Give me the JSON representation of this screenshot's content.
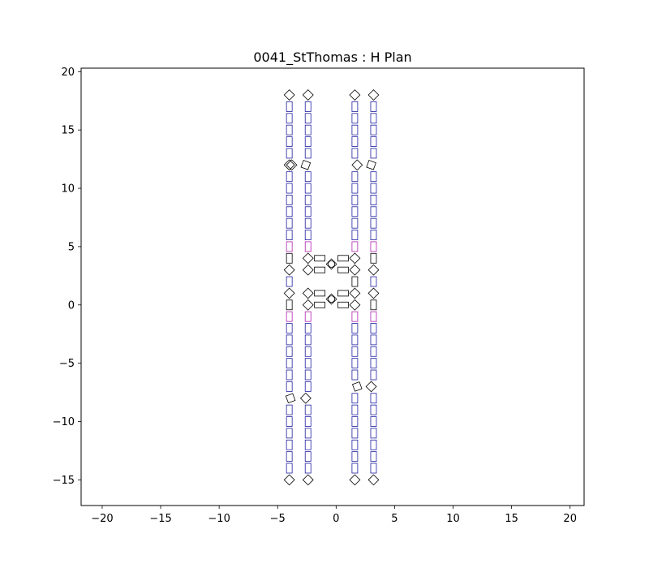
{
  "chart_data": {
    "type": "scatter",
    "title": "0041_StThomas : H Plan",
    "xlabel": "",
    "ylabel": "",
    "xlim": [
      -21.8,
      21.2
    ],
    "ylim": [
      -17.2,
      20.3
    ],
    "xticks": [
      -20,
      -15,
      -10,
      -5,
      0,
      5,
      10,
      15,
      20
    ],
    "yticks": [
      -15,
      -10,
      -5,
      0,
      5,
      10,
      15,
      20
    ],
    "xtick_labels": [
      "−20",
      "−15",
      "−10",
      "−5",
      "0",
      "5",
      "10",
      "15",
      "20"
    ],
    "ytick_labels": [
      "−15",
      "−10",
      "−5",
      "0",
      "5",
      "10",
      "15",
      "20"
    ],
    "grid": false,
    "legend": "none",
    "colors": {
      "blue": "#1f1fa0",
      "magenta": "#b020b0",
      "black": "#000000"
    },
    "columns": [
      {
        "x": -4.0,
        "squares": [
          {
            "y": 18.0,
            "rot": 45
          },
          {
            "y": 12.0,
            "rot": 45
          },
          {
            "y": 3.0,
            "rot": 45
          },
          {
            "y": 1.0,
            "rot": 45
          },
          {
            "y": -15.0,
            "rot": 45
          }
        ],
        "rects": [
          {
            "y": 17.0,
            "c": "blue"
          },
          {
            "y": 16.0,
            "c": "blue"
          },
          {
            "y": 15.0,
            "c": "blue"
          },
          {
            "y": 14.0,
            "c": "blue"
          },
          {
            "y": 13.0,
            "c": "blue"
          },
          {
            "y": 11.0,
            "c": "blue"
          },
          {
            "y": 10.0,
            "c": "blue"
          },
          {
            "y": 9.0,
            "c": "blue"
          },
          {
            "y": 8.0,
            "c": "blue"
          },
          {
            "y": 7.0,
            "c": "blue"
          },
          {
            "y": 6.0,
            "c": "blue"
          },
          {
            "y": 5.0,
            "c": "magenta"
          },
          {
            "y": 4.0,
            "c": "black"
          },
          {
            "y": 2.0,
            "c": "blue"
          },
          {
            "y": 0.0,
            "c": "black"
          },
          {
            "y": -1.0,
            "c": "magenta"
          },
          {
            "y": -2.0,
            "c": "blue"
          },
          {
            "y": -3.0,
            "c": "blue"
          },
          {
            "y": -4.0,
            "c": "blue"
          },
          {
            "y": -5.0,
            "c": "blue"
          },
          {
            "y": -6.0,
            "c": "blue"
          },
          {
            "y": -7.0,
            "c": "blue"
          },
          {
            "y": -9.0,
            "c": "blue"
          },
          {
            "y": -10.0,
            "c": "blue"
          },
          {
            "y": -11.0,
            "c": "blue"
          },
          {
            "y": -12.0,
            "c": "blue"
          },
          {
            "y": -13.0,
            "c": "blue"
          },
          {
            "y": -14.0,
            "c": "blue"
          }
        ]
      },
      {
        "x": -2.4,
        "squares": [
          {
            "y": 18.0,
            "rot": 45
          },
          {
            "y": 3.0,
            "rot": 45
          },
          {
            "y": 1.0,
            "rot": 45
          },
          {
            "y": -15.0,
            "rot": 45
          }
        ],
        "rects": [
          {
            "y": 17.0,
            "c": "blue"
          },
          {
            "y": 16.0,
            "c": "blue"
          },
          {
            "y": 15.0,
            "c": "blue"
          },
          {
            "y": 14.0,
            "c": "blue"
          },
          {
            "y": 13.0,
            "c": "blue"
          },
          {
            "y": 11.0,
            "c": "blue"
          },
          {
            "y": 10.0,
            "c": "blue"
          },
          {
            "y": 9.0,
            "c": "blue"
          },
          {
            "y": 8.0,
            "c": "blue"
          },
          {
            "y": 7.0,
            "c": "blue"
          },
          {
            "y": 6.0,
            "c": "blue"
          },
          {
            "y": 5.0,
            "c": "magenta"
          },
          {
            "y": -1.0,
            "c": "magenta"
          },
          {
            "y": -2.0,
            "c": "blue"
          },
          {
            "y": -3.0,
            "c": "blue"
          },
          {
            "y": -4.0,
            "c": "blue"
          },
          {
            "y": -5.0,
            "c": "blue"
          },
          {
            "y": -6.0,
            "c": "blue"
          },
          {
            "y": -7.0,
            "c": "blue"
          },
          {
            "y": -9.0,
            "c": "blue"
          },
          {
            "y": -10.0,
            "c": "blue"
          },
          {
            "y": -11.0,
            "c": "blue"
          },
          {
            "y": -12.0,
            "c": "blue"
          },
          {
            "y": -13.0,
            "c": "blue"
          },
          {
            "y": -14.0,
            "c": "blue"
          }
        ]
      },
      {
        "x": 1.6,
        "squares": [
          {
            "y": 18.0,
            "rot": 45
          },
          {
            "y": 3.0,
            "rot": 45
          },
          {
            "y": 1.0,
            "rot": 45
          },
          {
            "y": -15.0,
            "rot": 45
          }
        ],
        "rects": [
          {
            "y": 17.0,
            "c": "blue"
          },
          {
            "y": 16.0,
            "c": "blue"
          },
          {
            "y": 15.0,
            "c": "blue"
          },
          {
            "y": 14.0,
            "c": "blue"
          },
          {
            "y": 13.0,
            "c": "blue"
          },
          {
            "y": 11.0,
            "c": "blue"
          },
          {
            "y": 10.0,
            "c": "blue"
          },
          {
            "y": 9.0,
            "c": "blue"
          },
          {
            "y": 8.0,
            "c": "blue"
          },
          {
            "y": 7.0,
            "c": "blue"
          },
          {
            "y": 6.0,
            "c": "blue"
          },
          {
            "y": 5.0,
            "c": "magenta"
          },
          {
            "y": 2.0,
            "c": "black"
          },
          {
            "y": -1.0,
            "c": "magenta"
          },
          {
            "y": -2.0,
            "c": "blue"
          },
          {
            "y": -3.0,
            "c": "blue"
          },
          {
            "y": -4.0,
            "c": "blue"
          },
          {
            "y": -5.0,
            "c": "blue"
          },
          {
            "y": -6.0,
            "c": "blue"
          },
          {
            "y": -8.0,
            "c": "blue"
          },
          {
            "y": -9.0,
            "c": "blue"
          },
          {
            "y": -10.0,
            "c": "blue"
          },
          {
            "y": -11.0,
            "c": "blue"
          },
          {
            "y": -12.0,
            "c": "blue"
          },
          {
            "y": -13.0,
            "c": "blue"
          },
          {
            "y": -14.0,
            "c": "blue"
          }
        ]
      },
      {
        "x": 3.2,
        "squares": [
          {
            "y": 18.0,
            "rot": 45
          },
          {
            "y": 3.0,
            "rot": 45
          },
          {
            "y": 1.0,
            "rot": 45
          },
          {
            "y": -15.0,
            "rot": 45
          }
        ],
        "rects": [
          {
            "y": 17.0,
            "c": "blue"
          },
          {
            "y": 16.0,
            "c": "blue"
          },
          {
            "y": 15.0,
            "c": "blue"
          },
          {
            "y": 14.0,
            "c": "blue"
          },
          {
            "y": 13.0,
            "c": "blue"
          },
          {
            "y": 11.0,
            "c": "blue"
          },
          {
            "y": 10.0,
            "c": "blue"
          },
          {
            "y": 9.0,
            "c": "blue"
          },
          {
            "y": 8.0,
            "c": "blue"
          },
          {
            "y": 7.0,
            "c": "blue"
          },
          {
            "y": 6.0,
            "c": "blue"
          },
          {
            "y": 5.0,
            "c": "magenta"
          },
          {
            "y": 4.0,
            "c": "black"
          },
          {
            "y": 2.0,
            "c": "blue"
          },
          {
            "y": 0.0,
            "c": "black"
          },
          {
            "y": -1.0,
            "c": "magenta"
          },
          {
            "y": -2.0,
            "c": "blue"
          },
          {
            "y": -3.0,
            "c": "blue"
          },
          {
            "y": -4.0,
            "c": "blue"
          },
          {
            "y": -5.0,
            "c": "blue"
          },
          {
            "y": -6.0,
            "c": "blue"
          },
          {
            "y": -8.0,
            "c": "blue"
          },
          {
            "y": -9.0,
            "c": "blue"
          },
          {
            "y": -10.0,
            "c": "blue"
          },
          {
            "y": -11.0,
            "c": "blue"
          },
          {
            "y": -12.0,
            "c": "blue"
          },
          {
            "y": -13.0,
            "c": "blue"
          },
          {
            "y": -14.0,
            "c": "blue"
          }
        ]
      }
    ],
    "tilted_squares": [
      {
        "x": -3.8,
        "y": 12.0,
        "rot": 45
      },
      {
        "x": -2.6,
        "y": 12.0,
        "rot": 20
      },
      {
        "x": 1.8,
        "y": 12.0,
        "rot": 45
      },
      {
        "x": 3.0,
        "y": 12.0,
        "rot": 20
      },
      {
        "x": -3.9,
        "y": -8.0,
        "rot": 70
      },
      {
        "x": -2.6,
        "y": -8.0,
        "rot": 45
      },
      {
        "x": 1.8,
        "y": -7.0,
        "rot": 70
      },
      {
        "x": 3.0,
        "y": -7.0,
        "rot": 45
      },
      {
        "x": -2.4,
        "y": 4.0,
        "rot": 45
      },
      {
        "x": 1.6,
        "y": 4.0,
        "rot": 45
      },
      {
        "x": -2.4,
        "y": 0.0,
        "rot": 45
      },
      {
        "x": 1.6,
        "y": 0.0,
        "rot": 45
      }
    ],
    "crossbar_rects": [
      {
        "x": -1.4,
        "y": 4.0
      },
      {
        "x": 0.6,
        "y": 4.0
      },
      {
        "x": -1.4,
        "y": 3.0
      },
      {
        "x": 0.6,
        "y": 3.0
      },
      {
        "x": -1.4,
        "y": 1.0
      },
      {
        "x": 0.6,
        "y": 1.0
      },
      {
        "x": -1.4,
        "y": 0.0
      },
      {
        "x": 0.6,
        "y": 0.0
      }
    ],
    "center_markers": [
      {
        "x": -0.4,
        "y": 3.5
      },
      {
        "x": -0.4,
        "y": 0.5
      }
    ]
  }
}
